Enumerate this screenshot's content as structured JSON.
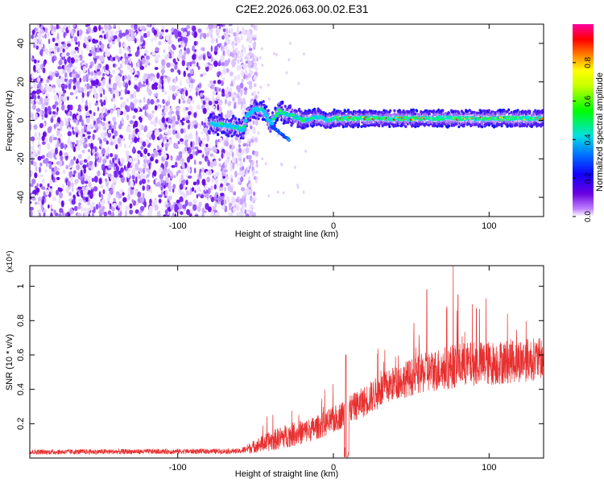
{
  "title": "C2E2.2026.063.00.02.E31",
  "chart_data": [
    {
      "type": "heatmap",
      "name": "spectrogram",
      "xlabel": "Height of straight line (km)",
      "ylabel": "Frequency (Hz)",
      "xlim": [
        -195,
        135
      ],
      "ylim": [
        -50,
        50
      ],
      "xticks": [
        -100,
        0,
        100
      ],
      "yticks": [
        -40,
        -20,
        0,
        20,
        40
      ],
      "colorbar": {
        "label": "Normalized spectral amplitude",
        "range": [
          0,
          1
        ],
        "ticks": [
          0.0,
          0.2,
          0.4,
          0.6,
          0.8
        ],
        "colors": [
          "#ffffff",
          "#c080ff",
          "#6a00e0",
          "#1000ff",
          "#0070ff",
          "#00e0e0",
          "#00ff00",
          "#ffff00",
          "#ff8000",
          "#ff0000",
          "#ff00a0"
        ]
      },
      "noise_region_x": [
        -195,
        -55
      ],
      "signal_trace": {
        "x": [
          -75,
          -65,
          -58,
          -55,
          -50,
          -45,
          -40,
          -35,
          -30,
          -25,
          -20,
          -15,
          -10,
          -5,
          0,
          10,
          20,
          40,
          60,
          80,
          100,
          120,
          135
        ],
        "frequency": [
          -2,
          -3,
          -5,
          3,
          6,
          5,
          -2,
          5,
          3,
          2,
          0,
          1,
          2,
          0,
          1,
          1,
          1,
          1,
          1,
          1,
          1,
          1,
          1
        ]
      }
    },
    {
      "type": "line",
      "name": "snr",
      "xlabel": "Height of straight line (km)",
      "ylabel": "SNR (10 * v/v)",
      "y_multiplier": "(x10⁴)",
      "xlim": [
        -195,
        135
      ],
      "ylim": [
        0,
        1.12
      ],
      "xticks": [
        -100,
        0,
        100
      ],
      "yticks": [
        0.2,
        0.4,
        0.6,
        0.8,
        1
      ],
      "color": "#e83030",
      "envelope": {
        "x": [
          -195,
          -60,
          -50,
          -40,
          -30,
          -20,
          -10,
          0,
          5,
          10,
          20,
          30,
          40,
          50,
          60,
          70,
          80,
          90,
          100,
          110,
          120,
          135
        ],
        "mean": [
          0.035,
          0.04,
          0.07,
          0.1,
          0.13,
          0.15,
          0.18,
          0.22,
          0.25,
          0.28,
          0.33,
          0.39,
          0.44,
          0.47,
          0.5,
          0.52,
          0.54,
          0.55,
          0.55,
          0.56,
          0.57,
          0.58
        ],
        "spread": [
          0.015,
          0.015,
          0.04,
          0.06,
          0.07,
          0.07,
          0.07,
          0.08,
          0.08,
          0.08,
          0.09,
          0.1,
          0.1,
          0.11,
          0.12,
          0.13,
          0.13,
          0.13,
          0.13,
          0.13,
          0.13,
          0.12
        ]
      },
      "features": [
        {
          "x": 8,
          "y": 0.6,
          "kind": "spike"
        },
        {
          "x": 8.5,
          "y": 0.0,
          "kind": "dip"
        },
        {
          "x": 77,
          "y": 1.12,
          "kind": "spike"
        },
        {
          "x": 60,
          "y": 0.98,
          "kind": "spike"
        },
        {
          "x": 80,
          "y": 0.95,
          "kind": "spike"
        },
        {
          "x": 98,
          "y": 0.93,
          "kind": "spike"
        }
      ]
    }
  ]
}
